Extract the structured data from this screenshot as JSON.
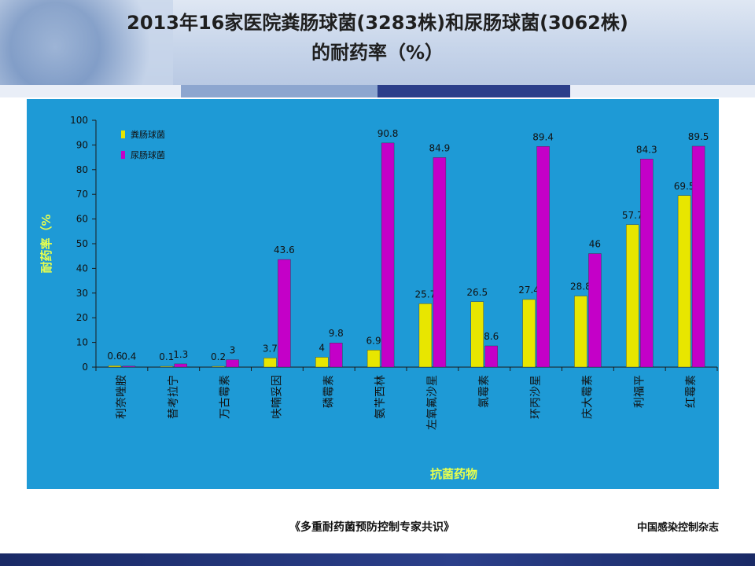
{
  "slide": {
    "title_line1": "2013年16家医院粪肠球菌(3283株)和尿肠球菌(3062株)",
    "title_line2": "的耐药率（%）",
    "footer_left": "《多重耐药菌预防控制专家共识》",
    "footer_right": "中国感染控制杂志"
  },
  "colors": {
    "chart_bg": "#1e9ad6",
    "series1": "#e8e600",
    "series2": "#c400c8",
    "axis_title": "#e8ff4d",
    "header_bar": [
      "#e9eef7",
      "#8da6cf",
      "#2b3f8a",
      "#e9eef7"
    ]
  },
  "chart_data": {
    "type": "bar",
    "title": "",
    "xlabel": "抗菌药物",
    "ylabel": "耐药率（%",
    "ylim": [
      0,
      100
    ],
    "yticks": [
      0,
      10,
      20,
      30,
      40,
      50,
      60,
      70,
      80,
      90,
      100
    ],
    "categories": [
      "利奈唑胺",
      "替考拉宁",
      "万古霉素",
      "呋喃妥因",
      "磷霉素",
      "氨苄西林",
      "左氧氟沙星",
      "氯霉素",
      "环丙沙星",
      "庆大霉素",
      "利福平",
      "红霉素"
    ],
    "series": [
      {
        "name": "粪肠球菌",
        "values": [
          0.6,
          0.1,
          0.2,
          3.7,
          4,
          6.9,
          25.7,
          26.5,
          27.4,
          28.8,
          57.7,
          69.5
        ]
      },
      {
        "name": "尿肠球菌",
        "values": [
          0.4,
          1.3,
          3,
          43.6,
          9.8,
          90.8,
          84.9,
          8.6,
          89.4,
          46,
          84.3,
          89.5
        ]
      }
    ],
    "legend_position": "top-left",
    "grid": false
  }
}
